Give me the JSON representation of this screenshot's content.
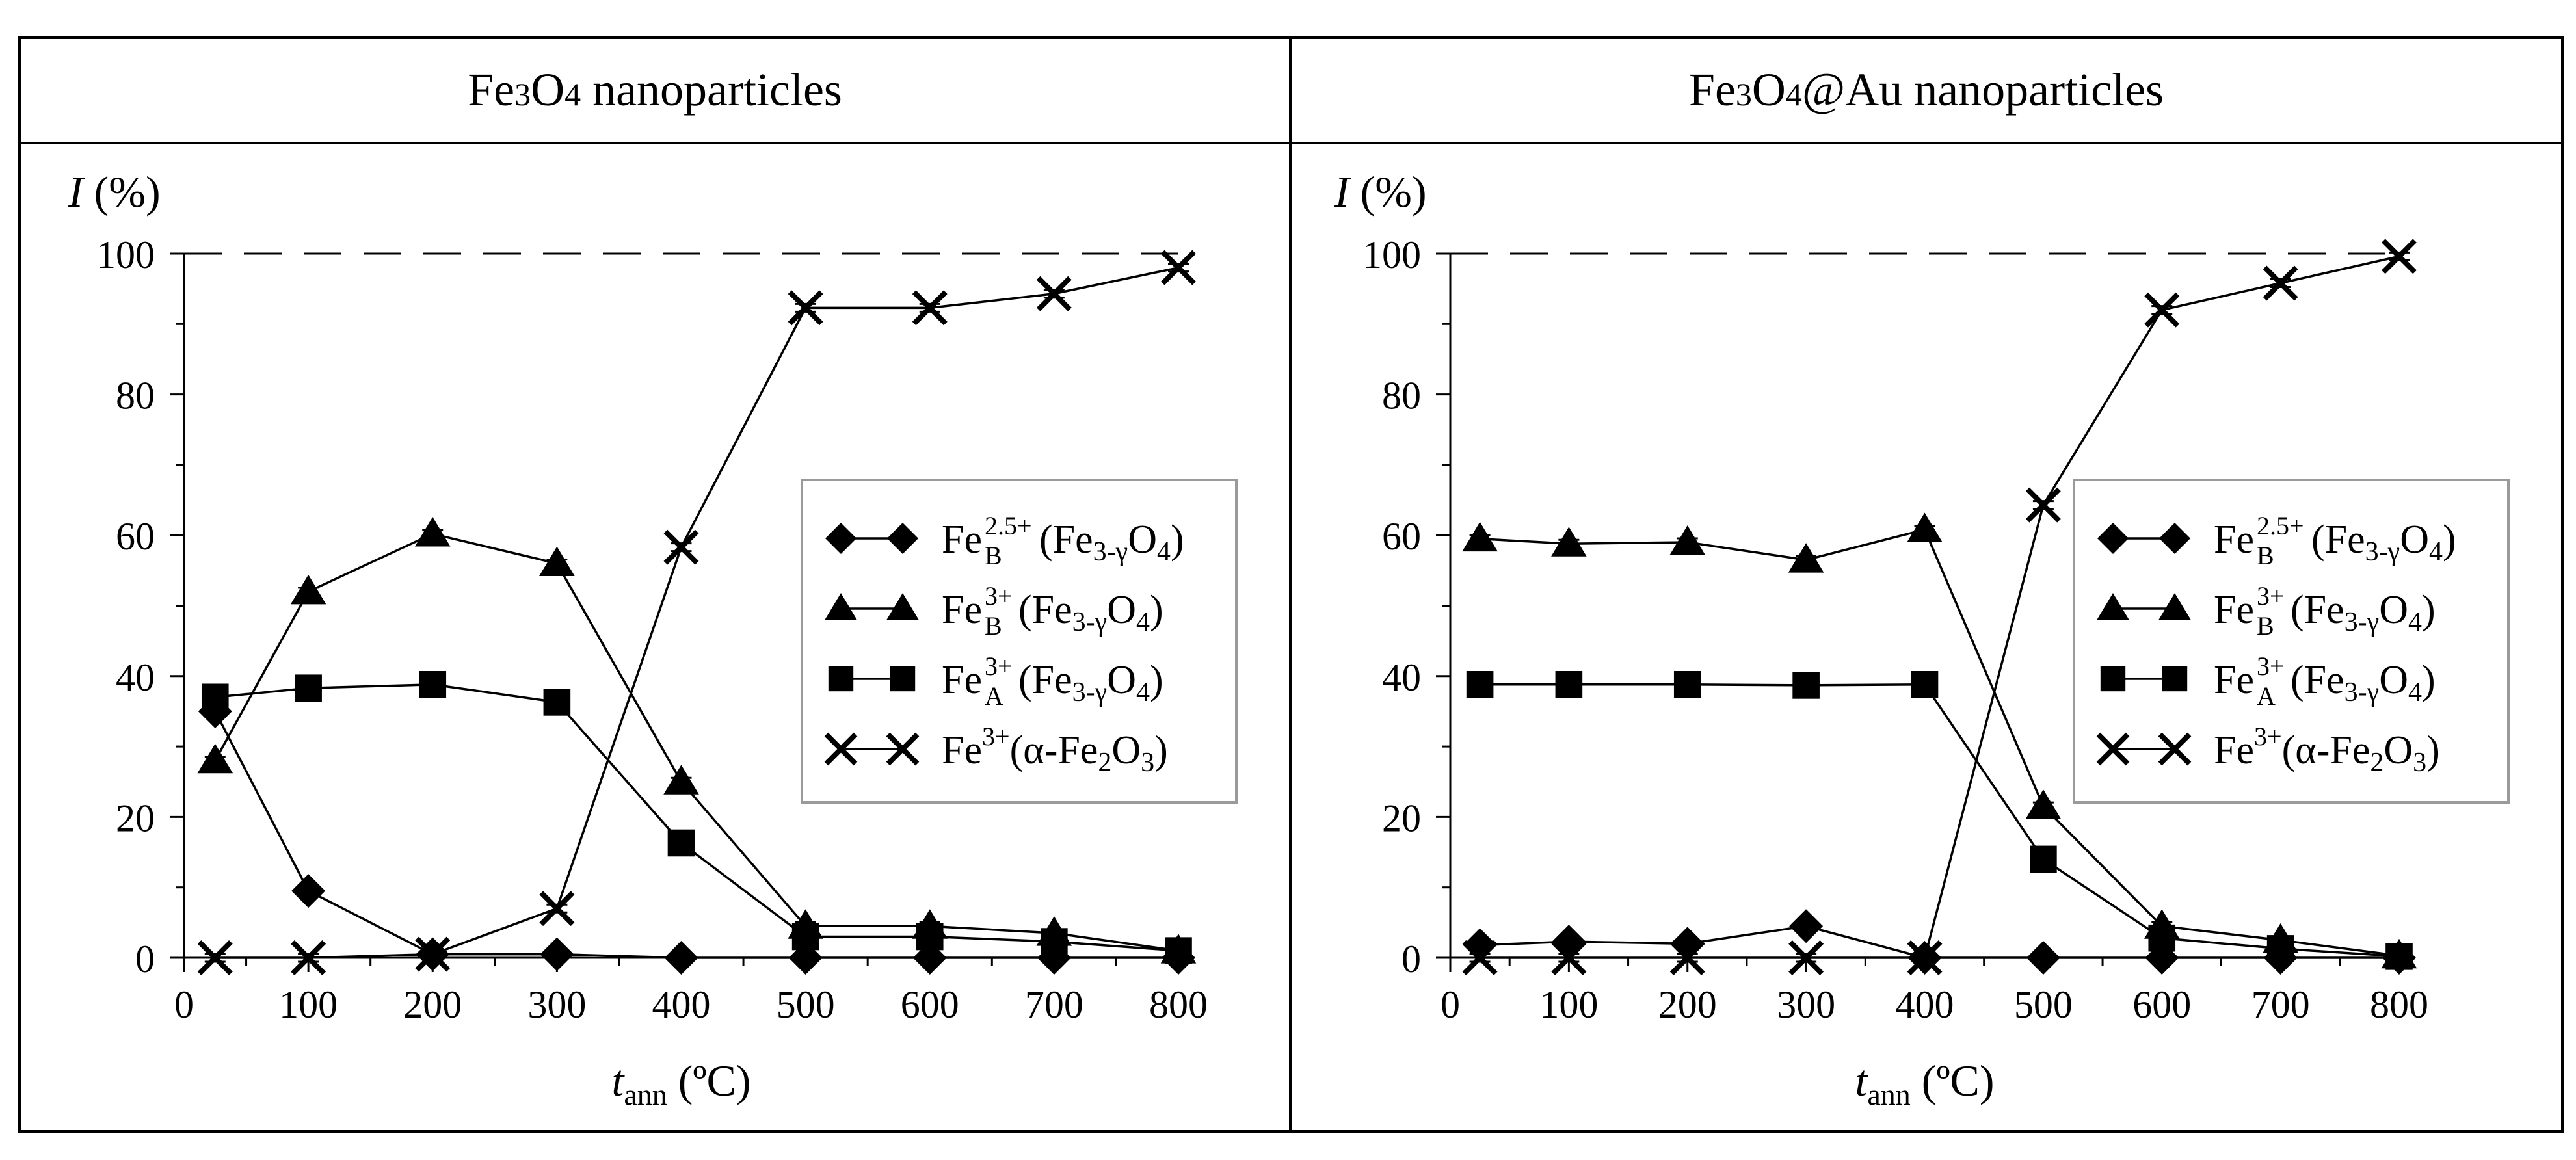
{
  "figure": {
    "colors": {
      "ink": "#000000",
      "legend_border": "#9a9a9a",
      "background": "#ffffff"
    }
  },
  "legend_entries": [
    {
      "key": "feb25",
      "marker": "diamond",
      "element": "Fe",
      "sub": "B",
      "sup": "2.5+",
      "tail_open": "(Fe",
      "tail_sub": "3-γ",
      "tail_mid": "O",
      "tail_sub2": "4",
      "tail_close": ")"
    },
    {
      "key": "feb3",
      "marker": "triangle",
      "element": "Fe",
      "sub": "B",
      "sup": "3+",
      "tail_open": "(Fe",
      "tail_sub": "3-γ",
      "tail_mid": "O",
      "tail_sub2": "4",
      "tail_close": ")"
    },
    {
      "key": "fea3",
      "marker": "square",
      "element": "Fe",
      "sub": "A",
      "sup": "3+",
      "tail_open": "(Fe",
      "tail_sub": "3-γ",
      "tail_mid": "O",
      "tail_sub2": "4",
      "tail_close": ")"
    },
    {
      "key": "hematite",
      "marker": "cross",
      "element": "Fe",
      "sub": "",
      "sup": "3+",
      "tail_open": "(α-Fe",
      "tail_sub": "2",
      "tail_mid": "O",
      "tail_sub2": "3",
      "tail_close": ")"
    }
  ],
  "chart_data": [
    {
      "type": "line",
      "title": "Fe3O4 nanoparticles",
      "title_parts": {
        "pre": "Fe",
        "sub1": "3",
        "mid": "O",
        "sub2": "4",
        "post": " nanoparticles"
      },
      "ylabel_var": "I",
      "ylabel_unit": "(%)",
      "xlabel_var": "t",
      "xlabel_sub": "ann",
      "xlabel_unit": "(ºC)",
      "xlim": [
        0,
        800
      ],
      "ylim": [
        0,
        100
      ],
      "xticks": [
        0,
        100,
        200,
        300,
        400,
        500,
        600,
        700,
        800
      ],
      "yticks": [
        0,
        20,
        40,
        60,
        80,
        100
      ],
      "reference_line": 100,
      "legend_position": "right-middle",
      "series": [
        {
          "key": "feb25",
          "marker": "diamond",
          "x": [
            25,
            100,
            200,
            300,
            400,
            500,
            600,
            700,
            800
          ],
          "y": [
            35,
            9.5,
            0.5,
            0.5,
            0,
            0,
            0,
            0,
            0
          ]
        },
        {
          "key": "feb3",
          "marker": "triangle",
          "x": [
            25,
            100,
            200,
            300,
            400,
            500,
            600,
            700,
            800
          ],
          "y": [
            28,
            52,
            60.2,
            56,
            25,
            4.5,
            4.5,
            3.5,
            1
          ]
        },
        {
          "key": "fea3",
          "marker": "square",
          "x": [
            25,
            100,
            200,
            300,
            400,
            500,
            600,
            700,
            800
          ],
          "y": [
            37,
            38.3,
            38.8,
            36.3,
            16.3,
            3,
            3,
            2.3,
            1
          ]
        },
        {
          "key": "hematite",
          "marker": "cross",
          "x": [
            25,
            100,
            200,
            300,
            400,
            500,
            600,
            700,
            800
          ],
          "y": [
            0,
            0,
            0.5,
            7,
            58.3,
            92.3,
            92.3,
            94.3,
            98
          ]
        }
      ]
    },
    {
      "type": "line",
      "title": "Fe3O4@Au nanoparticles",
      "title_parts": {
        "pre": "Fe",
        "sub1": "3",
        "mid": "O",
        "sub2": "4",
        "post": "@Au nanoparticles"
      },
      "ylabel_var": "I",
      "ylabel_unit": "(%)",
      "xlabel_var": "t",
      "xlabel_sub": "ann",
      "xlabel_unit": "(ºC)",
      "xlim": [
        0,
        800
      ],
      "ylim": [
        0,
        100
      ],
      "xticks": [
        0,
        100,
        200,
        300,
        400,
        500,
        600,
        700,
        800
      ],
      "yticks": [
        0,
        20,
        40,
        60,
        80,
        100
      ],
      "reference_line": 100,
      "legend_position": "right-middle",
      "series": [
        {
          "key": "feb25",
          "marker": "diamond",
          "x": [
            25,
            100,
            200,
            300,
            400,
            500,
            600,
            700,
            800
          ],
          "y": [
            1.8,
            2.3,
            2,
            4.5,
            0,
            0,
            0,
            0,
            0
          ]
        },
        {
          "key": "feb3",
          "marker": "triangle",
          "x": [
            25,
            100,
            200,
            300,
            400,
            500,
            600,
            700,
            800
          ],
          "y": [
            59.5,
            58.8,
            59,
            56.5,
            60.8,
            21.5,
            4.5,
            2.5,
            0.3
          ]
        },
        {
          "key": "fea3",
          "marker": "square",
          "x": [
            25,
            100,
            200,
            300,
            400,
            500,
            600,
            700,
            800
          ],
          "y": [
            38.8,
            38.8,
            38.8,
            38.7,
            38.8,
            14,
            2.8,
            1.3,
            0.2
          ]
        },
        {
          "key": "hematite",
          "marker": "cross",
          "x": [
            25,
            100,
            200,
            300,
            400,
            500,
            600,
            700,
            800
          ],
          "y": [
            0,
            0,
            0,
            0,
            0,
            64.3,
            92,
            95.8,
            99.6
          ]
        }
      ]
    }
  ]
}
